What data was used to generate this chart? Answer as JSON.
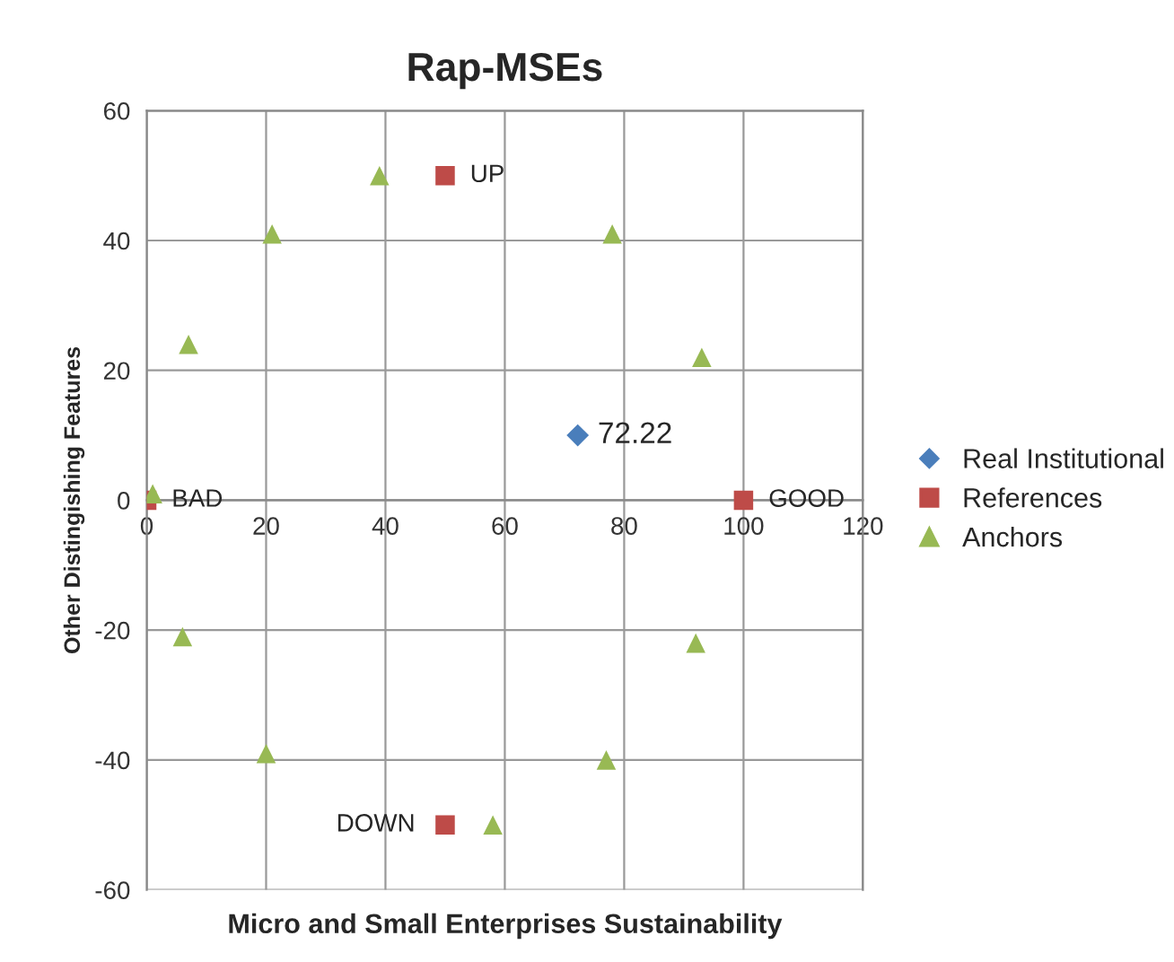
{
  "chart_data": {
    "type": "scatter",
    "title": "Rap-MSEs",
    "xlabel": "Micro and Small Enterprises Sustainability",
    "ylabel": "Other Distingishing Features",
    "xlim": [
      0,
      120
    ],
    "xticks": [
      0,
      20,
      40,
      60,
      80,
      100,
      120
    ],
    "ylim": [
      -60,
      60
    ],
    "yticks": [
      -60,
      -40,
      -20,
      0,
      20,
      40,
      60
    ],
    "grid": true,
    "legend": "right",
    "series": [
      {
        "name": "Real Institutional",
        "color": "#4a7ebb",
        "marker": "diamond",
        "x": [
          72.22
        ],
        "values": [
          10
        ]
      },
      {
        "name": "References",
        "color": "#be4b48",
        "marker": "square",
        "x": [
          0,
          100,
          50,
          50
        ],
        "values": [
          0,
          0,
          50,
          -50
        ]
      },
      {
        "name": "Anchors",
        "color": "#98b954",
        "marker": "triangle",
        "x": [
          1,
          7,
          21,
          39,
          78,
          93,
          92,
          77,
          58,
          20,
          6
        ],
        "values": [
          1,
          24,
          41,
          50,
          41,
          22,
          -22,
          -40,
          -50,
          -39,
          -21
        ]
      }
    ],
    "annotations": [
      {
        "text": "72.22",
        "x": 72.22,
        "y": 10
      },
      {
        "text": "BAD",
        "x": 0,
        "y": 0
      },
      {
        "text": "GOOD",
        "x": 100,
        "y": 0
      },
      {
        "text": "UP",
        "x": 50,
        "y": 50
      },
      {
        "text": "DOWN",
        "x": 50,
        "y": -50
      }
    ]
  }
}
